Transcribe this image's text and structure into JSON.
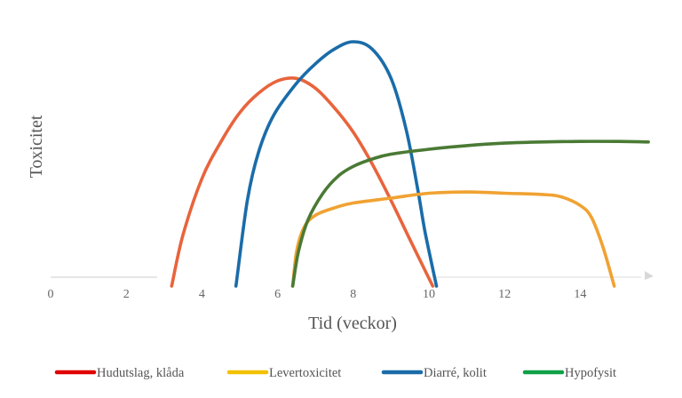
{
  "chart_data": {
    "type": "line",
    "xlabel": "Tid (veckor)",
    "ylabel": "Toxicitet",
    "x_ticks": [
      "0",
      "2",
      "4",
      "6",
      "8",
      "10",
      "12",
      "14"
    ],
    "xlim": [
      0,
      15.8
    ],
    "ylim": [
      0,
      100
    ],
    "grid": false,
    "legend_position": "bottom",
    "series": [
      {
        "name": "Hudutslag, klåda",
        "color": "#e8643c",
        "x": [
          3.2,
          3.5,
          4.0,
          4.5,
          5.0,
          5.5,
          6.0,
          6.5,
          7.0,
          7.5,
          8.0,
          8.5,
          9.0,
          9.5,
          10.1
        ],
        "y": [
          0,
          21,
          44,
          59,
          71,
          79,
          84,
          85,
          81,
          73,
          63,
          50,
          35,
          19,
          0
        ]
      },
      {
        "name": "Levertoxicitet",
        "color": "#f0a232",
        "x": [
          6.4,
          6.5,
          6.7,
          7.0,
          7.5,
          8.0,
          9.0,
          10.0,
          11.0,
          12.0,
          13.0,
          13.5,
          14.0,
          14.3,
          14.6,
          14.9
        ],
        "y": [
          0,
          14,
          24,
          29,
          32,
          34,
          36,
          38,
          38.5,
          38,
          37.5,
          36.5,
          33,
          28,
          16,
          0
        ]
      },
      {
        "name": "Diarré, kolit",
        "color": "#1a6ca9",
        "x": [
          4.9,
          5.2,
          5.5,
          5.9,
          6.5,
          7.0,
          7.5,
          8.0,
          8.5,
          9.0,
          9.4,
          9.7,
          9.9,
          10.2
        ],
        "y": [
          0,
          35,
          55,
          70,
          83,
          91,
          97,
          100,
          97,
          85,
          64,
          40,
          22,
          0
        ]
      },
      {
        "name": "Hypofysit",
        "color": "#4a7a34",
        "x": [
          6.4,
          6.55,
          6.8,
          7.2,
          7.6,
          8.0,
          8.5,
          9.0,
          10.0,
          11.0,
          12.0,
          13.0,
          14.0,
          15.0,
          15.8
        ],
        "y": [
          0,
          14,
          27,
          38,
          45,
          49,
          52,
          54,
          56,
          57.5,
          58.5,
          59,
          59.2,
          59.2,
          59
        ]
      }
    ]
  },
  "legend": [
    {
      "label": "Hudutslag, klåda",
      "color": "#e00000"
    },
    {
      "label": "Levertoxicitet",
      "color": "#f2c100"
    },
    {
      "label": "Diarré, kolit",
      "color": "#1a6ca9"
    },
    {
      "label": "Hypofysit",
      "color": "#0fa048"
    }
  ]
}
